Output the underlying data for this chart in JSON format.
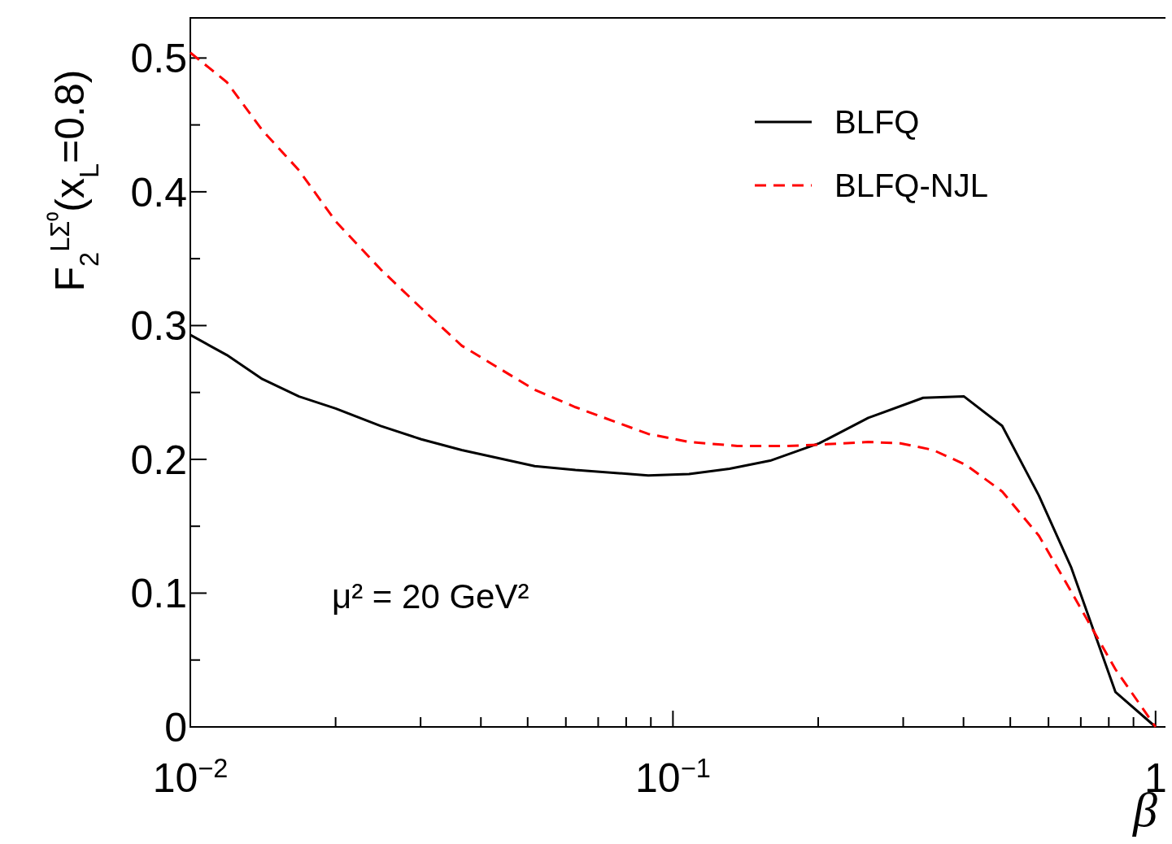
{
  "chart_data": {
    "type": "line",
    "xlabel": "β",
    "ylabel": "F$_{2}$$^{LΣ⁰}$(x$_{L}$=0.8)",
    "annotations": [
      "μ² = 20 GeV²"
    ],
    "log": "x",
    "xlim": [
      0.01,
      1.09
    ],
    "ylim": [
      0,
      0.53
    ],
    "xticks": [
      {
        "value": 0.01,
        "label": "10$^{−2}$"
      },
      {
        "value": 0.02,
        "label": null
      },
      {
        "value": 0.03,
        "label": null
      },
      {
        "value": 0.04,
        "label": null
      },
      {
        "value": 0.05,
        "label": null
      },
      {
        "value": 0.06,
        "label": null
      },
      {
        "value": 0.07,
        "label": null
      },
      {
        "value": 0.08,
        "label": null
      },
      {
        "value": 0.09,
        "label": null
      },
      {
        "value": 0.1,
        "label": "10$^{−1}$"
      },
      {
        "value": 0.2,
        "label": null
      },
      {
        "value": 0.3,
        "label": null
      },
      {
        "value": 0.4,
        "label": null
      },
      {
        "value": 0.5,
        "label": null
      },
      {
        "value": 0.6,
        "label": null
      },
      {
        "value": 0.7,
        "label": null
      },
      {
        "value": 0.8,
        "label": null
      },
      {
        "value": 0.9,
        "label": null
      },
      1
    ],
    "yticks": [
      0,
      {
        "value": 0.05,
        "label": null
      },
      0.1,
      {
        "value": 0.15,
        "label": null
      },
      0.2,
      {
        "value": 0.25,
        "label": null
      },
      0.3,
      {
        "value": 0.35,
        "label": null
      },
      0.4,
      {
        "value": 0.45,
        "label": null
      },
      0.5
    ],
    "grid": false,
    "legend": "top right",
    "marker": "none",
    "series": [
      {
        "name": "BLFQ",
        "color": "#000000",
        "line_style": "solid",
        "x": [
          0.01,
          0.0119,
          0.0141,
          0.0168,
          0.02,
          0.0248,
          0.0301,
          0.0365,
          0.0517,
          0.0628,
          0.0889,
          0.108,
          0.131,
          0.159,
          0.201,
          0.254,
          0.33,
          0.401,
          0.481,
          0.573,
          0.669,
          0.826,
          1
        ],
        "values": [
          0.293,
          0.278,
          0.26,
          0.247,
          0.238,
          0.225,
          0.215,
          0.207,
          0.195,
          0.192,
          0.188,
          0.189,
          0.193,
          0.199,
          0.212,
          0.231,
          0.246,
          0.247,
          0.225,
          0.173,
          0.119,
          0.026,
          0
        ]
      },
      {
        "name": "BLFQ-NJL",
        "color": "#ff0000",
        "line_style": "dashed",
        "x": [
          0.01,
          0.0119,
          0.0141,
          0.0168,
          0.02,
          0.0248,
          0.0301,
          0.0365,
          0.0517,
          0.0628,
          0.0889,
          0.108,
          0.136,
          0.172,
          0.201,
          0.254,
          0.296,
          0.346,
          0.404,
          0.481,
          0.573,
          0.669,
          0.826,
          1
        ],
        "values": [
          0.504,
          0.482,
          0.446,
          0.416,
          0.378,
          0.342,
          0.313,
          0.285,
          0.252,
          0.239,
          0.219,
          0.213,
          0.21,
          0.21,
          0.211,
          0.213,
          0.212,
          0.207,
          0.196,
          0.176,
          0.143,
          0.101,
          0.043,
          0
        ]
      }
    ]
  }
}
